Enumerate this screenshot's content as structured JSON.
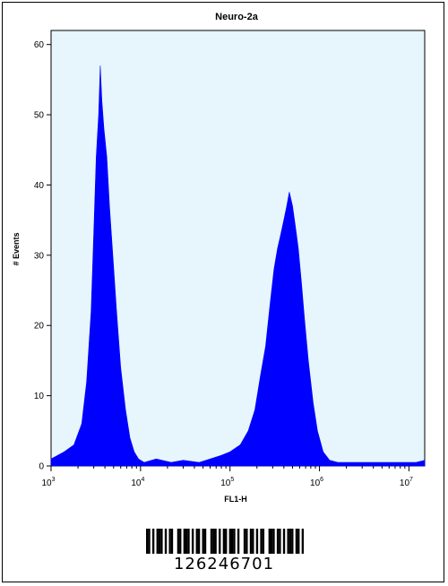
{
  "chart_data": {
    "type": "area",
    "title": "Neuro-2a",
    "xlabel": "FL1-H",
    "ylabel": "# Events",
    "x_scale": "log",
    "xlim": [
      1000,
      15000000
    ],
    "ylim": [
      0,
      62
    ],
    "x_ticks": [
      {
        "value": 1000,
        "base": "10",
        "exp": "3"
      },
      {
        "value": 10000,
        "base": "10",
        "exp": "4"
      },
      {
        "value": 100000,
        "base": "10",
        "exp": "5"
      },
      {
        "value": 1000000,
        "base": "10",
        "exp": "6"
      },
      {
        "value": 10000000,
        "base": "10",
        "exp": "7"
      }
    ],
    "y_ticks": [
      0,
      10,
      20,
      30,
      40,
      50,
      60
    ],
    "grid": false,
    "background_color": "#e6f6fc",
    "fill_color": "#0000ff",
    "series": [
      {
        "x": [
          1000,
          1400,
          1800,
          2200,
          2500,
          2800,
          3000,
          3200,
          3400,
          3550,
          3700,
          3900,
          4200,
          4500,
          4900,
          5400,
          6000,
          6800,
          7600,
          8500,
          9500,
          11000,
          15000,
          22000,
          30000,
          45000,
          60000,
          80000,
          100000,
          130000,
          160000,
          190000,
          220000,
          250000,
          280000,
          310000,
          340000,
          370000,
          400000,
          430000,
          460000,
          500000,
          540000,
          580000,
          630000,
          680000,
          750000,
          850000,
          950000,
          1100000,
          1300000,
          1600000,
          2000000,
          3000000,
          5000000,
          8000000,
          12000000,
          15000000
        ],
        "y": [
          1,
          2,
          3,
          6,
          12,
          22,
          33,
          44,
          50,
          57,
          52,
          48,
          44,
          37,
          30,
          22,
          14,
          8,
          4,
          2,
          1,
          0.5,
          1,
          0.5,
          0.8,
          0.5,
          1,
          1.5,
          2,
          3,
          5,
          8,
          13,
          17,
          23,
          28,
          31,
          33,
          35,
          37,
          39,
          37,
          34,
          31,
          26,
          21,
          15,
          9,
          5,
          2,
          0.8,
          0.5,
          0.5,
          0.5,
          0.5,
          0.5,
          0.5,
          0.8
        ]
      }
    ]
  },
  "barcode": {
    "number": "126246701",
    "pattern": "1101011101011001101110101101100111010110111010011011010110011101101011101101"
  }
}
